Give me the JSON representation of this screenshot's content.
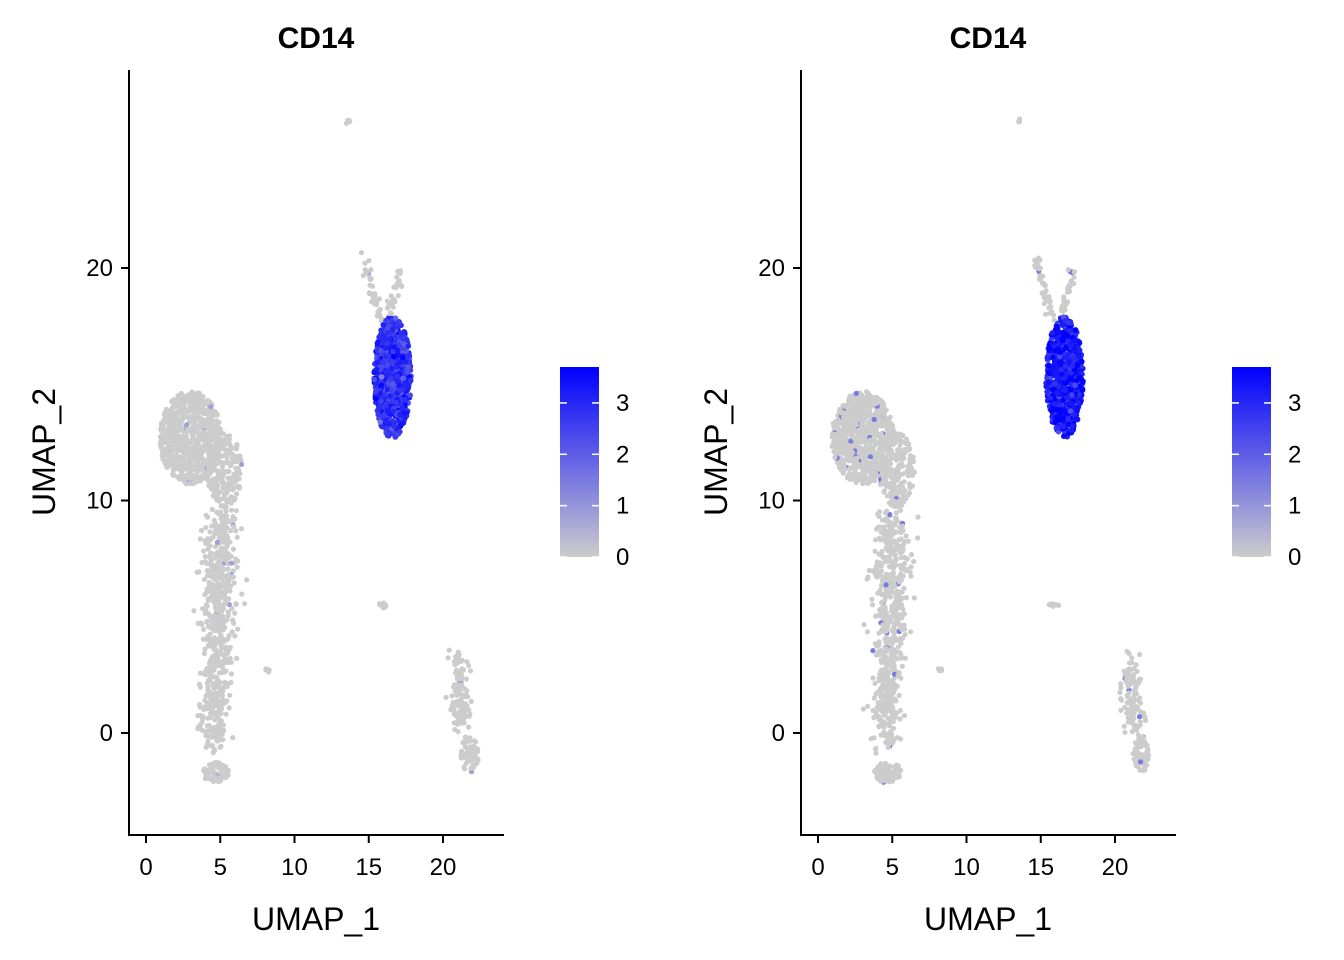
{
  "chart_data": [
    {
      "type": "scatter",
      "title": "CD14",
      "xlabel": "UMAP_1",
      "ylabel": "UMAP_2",
      "xlim": [
        -1,
        24.5
      ],
      "ylim": [
        -4.5,
        28.5
      ],
      "xticks": [
        "0",
        "5",
        "10",
        "15",
        "20"
      ],
      "yticks": [
        "0",
        "10",
        "20"
      ],
      "color_low": "#cccccc",
      "color_high": "#0000ff",
      "legend": {
        "position": "right",
        "ticks": [
          "3",
          "2",
          "1",
          "0"
        ],
        "min": 0,
        "max": 3.7
      },
      "high_cluster_expression": 0.78,
      "sparse_expression": 0.22
    },
    {
      "type": "scatter",
      "title": "CD14",
      "xlabel": "UMAP_1",
      "ylabel": "UMAP_2",
      "xlim": [
        -1,
        24.5
      ],
      "ylim": [
        -4.5,
        28.5
      ],
      "xticks": [
        "0",
        "5",
        "10",
        "15",
        "20"
      ],
      "yticks": [
        "0",
        "10",
        "20"
      ],
      "color_low": "#cccccc",
      "color_high": "#0000ff",
      "legend": {
        "position": "right",
        "ticks": [
          "3",
          "2",
          "1",
          "0"
        ],
        "min": 0,
        "max": 3.7
      },
      "high_cluster_expression": 0.88,
      "sparse_expression": 0.4
    }
  ]
}
